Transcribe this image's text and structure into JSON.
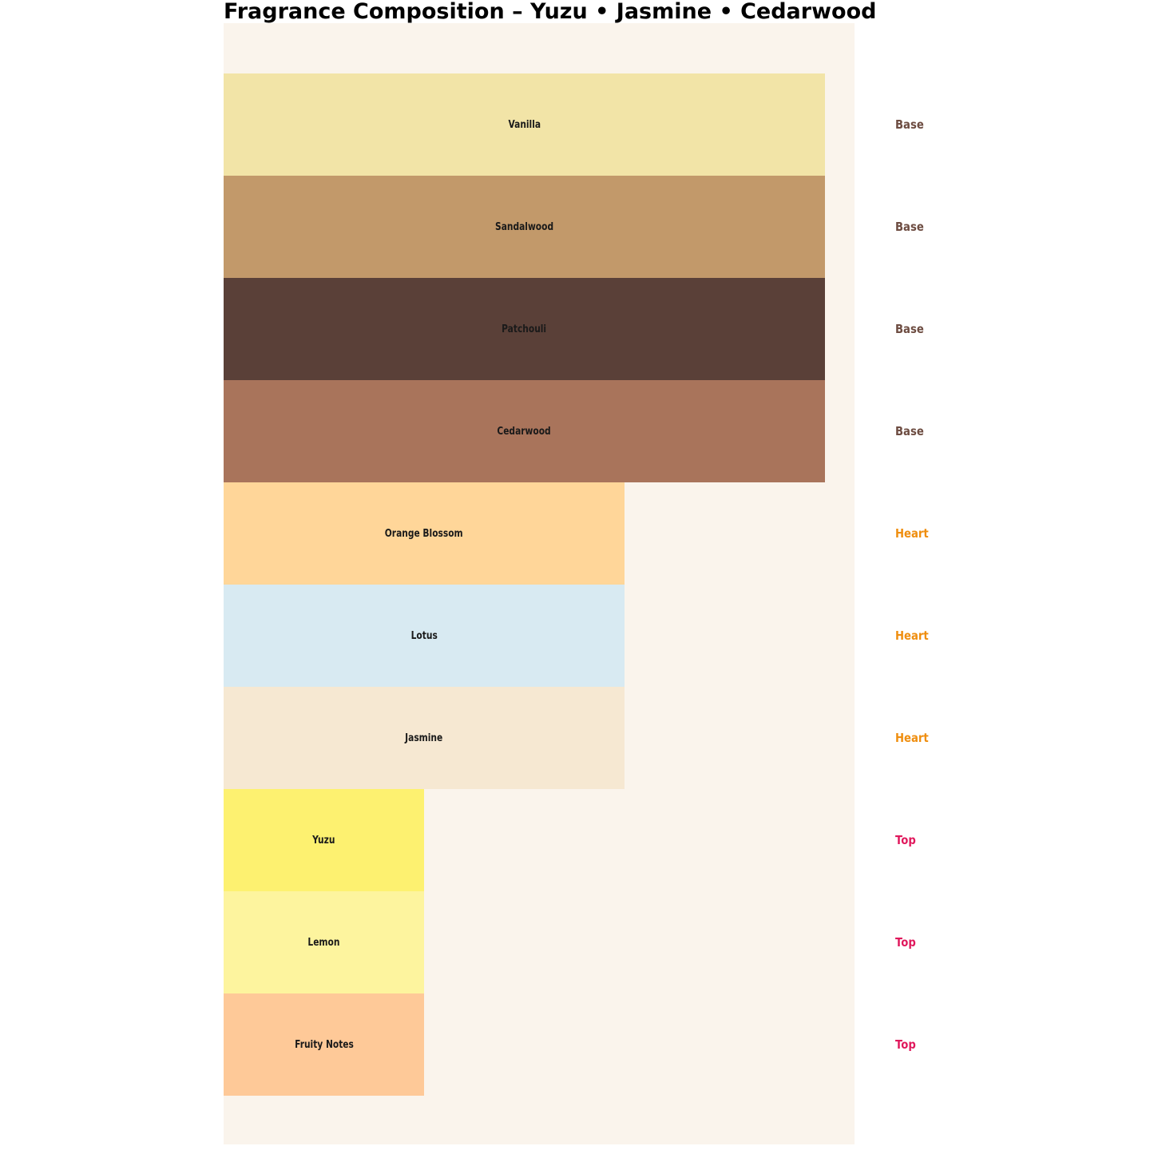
{
  "title": "Fragrance Composition – Yuzu • Jasmine • Cedarwood",
  "chart_data": {
    "type": "bar",
    "orientation": "horizontal",
    "title": "Fragrance Composition – Yuzu • Jasmine • Cedarwood",
    "categories": [
      "Vanilla",
      "Sandalwood",
      "Patchouli",
      "Cedarwood",
      "Orange Blossom",
      "Lotus",
      "Jasmine",
      "Yuzu",
      "Lemon",
      "Fruity Notes"
    ],
    "values": [
      3,
      3,
      3,
      3,
      2,
      2,
      2,
      1,
      1,
      1
    ],
    "value_unit": "relative width units (Top = 1, Heart = 2, Base = 3)",
    "tiers": [
      "Base",
      "Base",
      "Base",
      "Base",
      "Heart",
      "Heart",
      "Heart",
      "Top",
      "Top",
      "Top"
    ],
    "bar_colors": [
      "#f2e4a7",
      "#c2996a",
      "#5a4038",
      "#a9745b",
      "#ffd699",
      "#d8eaf2",
      "#f6e8d2",
      "#fdf170",
      "#fdf49e",
      "#fec998"
    ],
    "tier_label_colors": {
      "Base": "#6d4c41",
      "Heart": "#ef8e0f",
      "Top": "#e0185c"
    },
    "bar_label_color": "#1a1a1a",
    "plot_background": "#faf4ec",
    "xlim": [
      0,
      3.15
    ],
    "xlabel": "",
    "ylabel": "",
    "axes_visible": false,
    "gridlines": false,
    "legend_position": "none (tier names rendered to the right of each bar row)"
  }
}
